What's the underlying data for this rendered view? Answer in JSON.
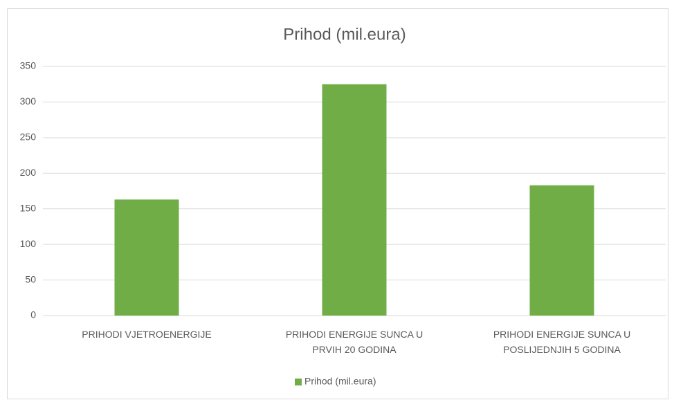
{
  "chart_data": {
    "type": "bar",
    "title": "Prihod (mil.eura)",
    "categories": [
      "PRIHODI VJETROENERGIJE",
      "PRIHODI ENERGIJE SUNCA U PRVIH 20 GODINA",
      "PRIHODI ENERGIJE SUNCA U POSLIJEDNJIH 5 GODINA"
    ],
    "series": [
      {
        "name": "Prihod (mil.eura)",
        "color": "#70ad47",
        "values": [
          163,
          325,
          183
        ]
      }
    ],
    "ylim": [
      0,
      350
    ],
    "yticks": [
      0,
      50,
      100,
      150,
      200,
      250,
      300,
      350
    ],
    "grid": true,
    "legend": "bottom"
  }
}
